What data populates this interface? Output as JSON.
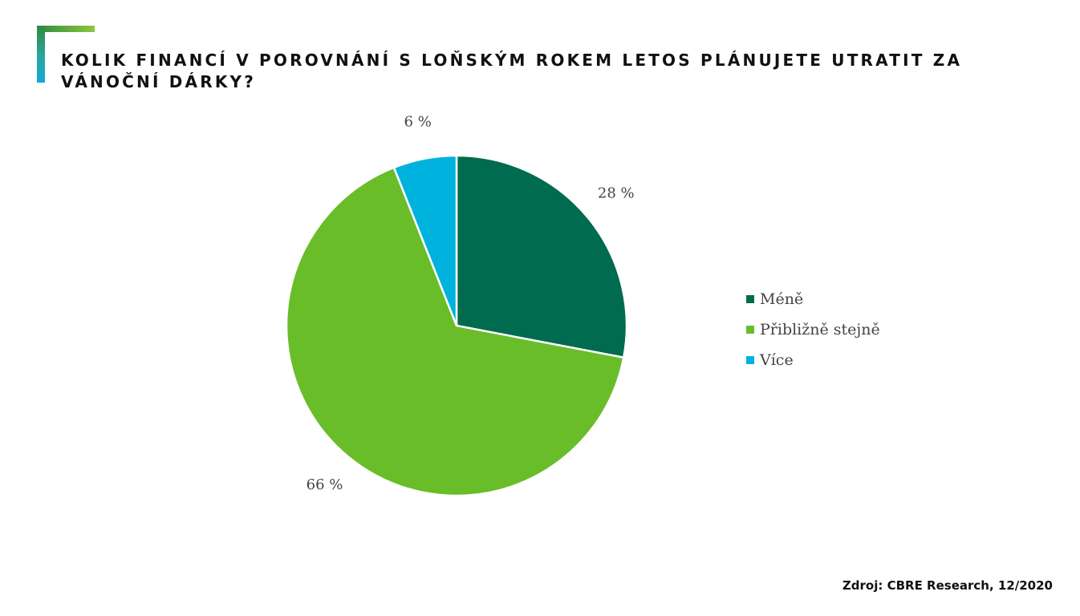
{
  "title": "KOLIK FINANCÍ V POROVNÁNÍ S LOŇSKÝM ROKEM LETOS PLÁNUJETE UTRATIT ZA VÁNOČNÍ DÁRKY?",
  "source": "Zdroj: CBRE Research, 12/2020",
  "chart_data": {
    "type": "pie",
    "title": "KOLIK FINANCÍ V POROVNÁNÍ S LOŇSKÝM ROKEM LETOS PLÁNUJETE UTRATIT ZA VÁNOČNÍ DÁRKY?",
    "categories": [
      "Méně",
      "Přibližně stejně",
      "Více"
    ],
    "values": [
      28,
      66,
      6
    ],
    "labels": [
      "28 %",
      "66 %",
      "6 %"
    ],
    "colors": [
      "#006b4e",
      "#69bd28",
      "#00b2de"
    ],
    "legend_position": "right",
    "start_angle": "12 o'clock",
    "direction": "clockwise"
  }
}
